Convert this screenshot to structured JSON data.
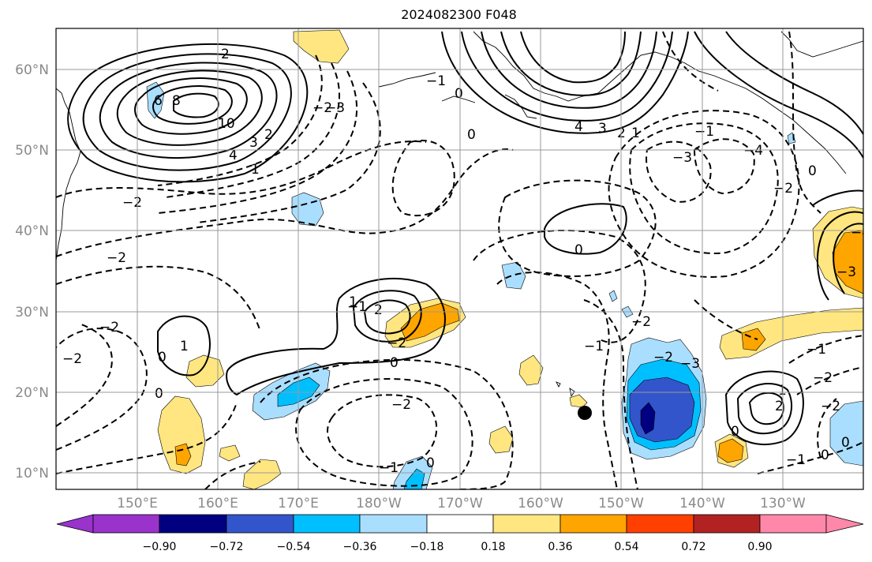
{
  "title": "2024082300 F048",
  "lat_labels": [
    "60°N",
    "50°N",
    "40°N",
    "30°N",
    "20°N",
    "10°N"
  ],
  "lon_labels": [
    "150°E",
    "160°E",
    "170°E",
    "180°W",
    "170°W",
    "160°W",
    "150°W",
    "140°W",
    "130°W"
  ],
  "colorbar": {
    "colors": [
      "#9933cc",
      "#000080",
      "#3355cc",
      "#00bfff",
      "#aadeff",
      "#ffffff",
      "#ffe680",
      "#ffa500",
      "#ff4000",
      "#b22222",
      "#ff88aa"
    ],
    "tick_labels": [
      "−0.90",
      "−0.72",
      "−0.54",
      "−0.36",
      "−0.18",
      "0.18",
      "0.36",
      "0.54",
      "0.72",
      "0.90"
    ]
  },
  "contour_labels": [
    "2",
    "6",
    "8",
    "10",
    "4",
    "3",
    "2",
    "1",
    "−2",
    "−2",
    "−1",
    "−2",
    "−3",
    "4",
    "3",
    "2",
    "1",
    "0",
    "0",
    "−1",
    "0",
    "−2",
    "−3",
    "−4",
    "−2",
    "−3",
    "−4",
    "0",
    "−2",
    "0",
    "−1",
    "0",
    "1",
    "0",
    "1",
    "2",
    "−2",
    "0",
    "−2",
    "−1",
    "−1",
    "−2",
    "0",
    "1",
    "2",
    "0",
    "−1",
    "−2",
    "0",
    "−1",
    "−2",
    "−2",
    "−3"
  ],
  "marker": "station-dot"
}
